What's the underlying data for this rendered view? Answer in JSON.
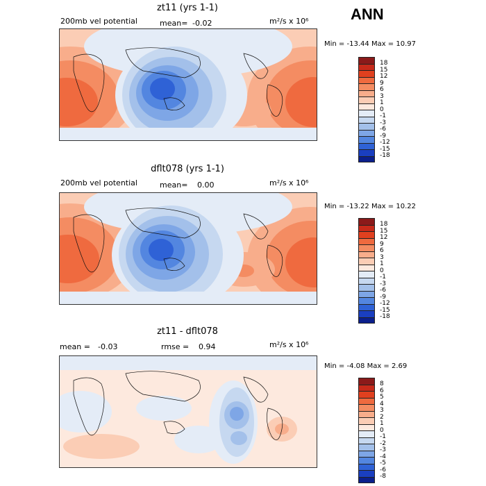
{
  "page_title": "ANN",
  "chart_data": [
    {
      "type": "heatmap",
      "title": "zt11 (yrs 1-1)",
      "field_label": "200mb vel potential",
      "mean_label": "mean=",
      "mean_value": "-0.02",
      "units": "m²/s x 10⁶",
      "min_label": "Min =",
      "min_value": "-13.44",
      "max_label": "Max =",
      "max_value": "10.97",
      "levels": [
        "18",
        "15",
        "12",
        "9",
        "6",
        "3",
        "1",
        "0",
        "-1",
        "-3",
        "-6",
        "-9",
        "-12",
        "-15",
        "-18"
      ],
      "colors": [
        "#8b1a1a",
        "#c72a1a",
        "#e0401f",
        "#ef6a3f",
        "#f48c62",
        "#f8ad8b",
        "#fbcdb5",
        "#fde9de",
        "#e4ecf7",
        "#c6d8f0",
        "#a3c0ea",
        "#7ea6e6",
        "#5386e0",
        "#2f62d6",
        "#1a3fc0",
        "#0b1f8c"
      ]
    },
    {
      "type": "heatmap",
      "title": "dflt078 (yrs 1-1)",
      "field_label": "200mb vel potential",
      "mean_label": "mean=",
      "mean_value": "0.00",
      "units": "m²/s x 10⁶",
      "min_label": "Min =",
      "min_value": "-13.22",
      "max_label": "Max =",
      "max_value": "10.22",
      "levels": [
        "18",
        "15",
        "12",
        "9",
        "6",
        "3",
        "1",
        "0",
        "-1",
        "-3",
        "-6",
        "-9",
        "-12",
        "-15",
        "-18"
      ],
      "colors": [
        "#8b1a1a",
        "#c72a1a",
        "#e0401f",
        "#ef6a3f",
        "#f48c62",
        "#f8ad8b",
        "#fbcdb5",
        "#fde9de",
        "#e4ecf7",
        "#c6d8f0",
        "#a3c0ea",
        "#7ea6e6",
        "#5386e0",
        "#2f62d6",
        "#1a3fc0",
        "#0b1f8c"
      ]
    },
    {
      "type": "heatmap",
      "title": "zt11 - dflt078",
      "mean_label": "mean =",
      "mean_value": "-0.03",
      "rmse_label": "rmse =",
      "rmse_value": "0.94",
      "units": "m²/s x 10⁶",
      "min_label": "Min =",
      "min_value": "-4.08",
      "max_label": "Max =",
      "max_value": "2.69",
      "levels": [
        "8",
        "6",
        "5",
        "4",
        "3",
        "2",
        "1",
        "0",
        "-1",
        "-2",
        "-3",
        "-4",
        "-5",
        "-6",
        "-8"
      ],
      "colors": [
        "#8b1a1a",
        "#c72a1a",
        "#e0401f",
        "#ef6a3f",
        "#f48c62",
        "#f8ad8b",
        "#fbcdb5",
        "#fde9de",
        "#e4ecf7",
        "#c6d8f0",
        "#a3c0ea",
        "#7ea6e6",
        "#5386e0",
        "#2f62d6",
        "#1a3fc0",
        "#0b1f8c"
      ]
    }
  ]
}
